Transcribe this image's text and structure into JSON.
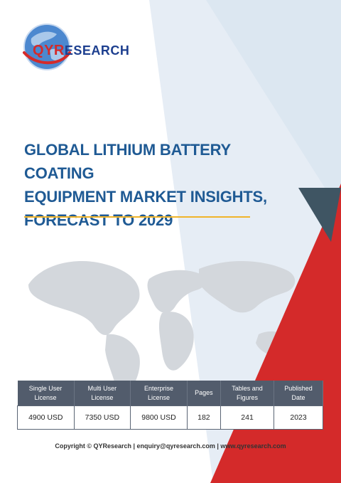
{
  "brand": {
    "logo_q": "Q",
    "logo_y": "Y",
    "logo_r": "R",
    "logo_rest": "ESEARCH"
  },
  "title": {
    "line1": "GLOBAL LITHIUM BATTERY COATING",
    "line2": "EQUIPMENT MARKET INSIGHTS,",
    "line3": "FORECAST TO 2029"
  },
  "table": {
    "headers": [
      [
        "Single User",
        "License"
      ],
      [
        "Multi User",
        "License"
      ],
      [
        "Enterprise",
        "License"
      ],
      [
        "Pages",
        ""
      ],
      [
        "Tables and",
        "Figures"
      ],
      [
        "Published",
        "Date"
      ]
    ],
    "values": [
      "4900 USD",
      "7350 USD",
      "9800 USD",
      "182",
      "241",
      "2023"
    ]
  },
  "footer": {
    "copyright": "Copyright © QYResearch | enquiry@qyresearch.com | www.qyresearch.com"
  },
  "colors": {
    "title_blue": "#1f5a94",
    "accent_red": "#d42a2a",
    "accent_gold": "#f0b429",
    "header_gray": "#525c6c",
    "dark_triangle": "#3f5563",
    "light_blue_triangle": "#e4ecf4"
  }
}
